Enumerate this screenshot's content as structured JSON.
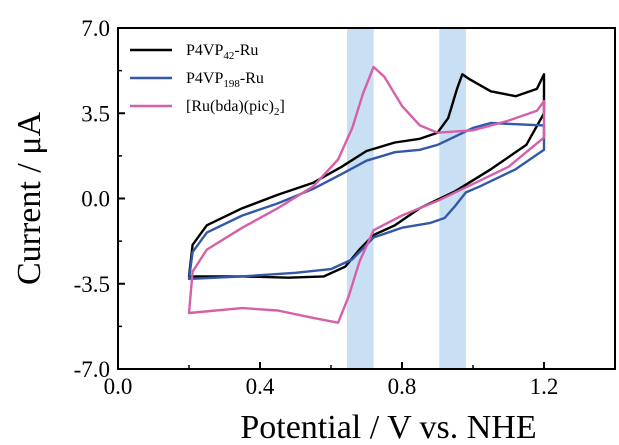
{
  "chart_data": {
    "type": "line",
    "title": "",
    "xlabel": "Potential / V vs. NHE",
    "ylabel": "Current / μA",
    "xlim": [
      0.0,
      1.4
    ],
    "ylim": [
      -7.0,
      7.0
    ],
    "xticks": [
      "0.0",
      "0.4",
      "0.8",
      "1.2"
    ],
    "xtick_values": [
      0.0,
      0.4,
      0.8,
      1.2
    ],
    "yticks": [
      "-7.0",
      "-3.5",
      "0.0",
      "3.5",
      "7.0"
    ],
    "ytick_values": [
      -7.0,
      -3.5,
      0.0,
      3.5,
      7.0
    ],
    "grid": false,
    "legend_position": "top-left",
    "highlight_bands": [
      {
        "x_start": 0.645,
        "x_end": 0.72,
        "color": "#c9dff3"
      },
      {
        "x_start": 0.905,
        "x_end": 0.98,
        "color": "#c9dff3"
      }
    ],
    "series": [
      {
        "name_main": "P4VP",
        "name_sub": "42",
        "name_tail": "-Ru",
        "color": "#000000",
        "points": [
          [
            0.2,
            -3.2
          ],
          [
            0.21,
            -1.9
          ],
          [
            0.25,
            -1.1
          ],
          [
            0.35,
            -0.4
          ],
          [
            0.45,
            0.15
          ],
          [
            0.55,
            0.65
          ],
          [
            0.63,
            1.3
          ],
          [
            0.7,
            1.95
          ],
          [
            0.78,
            2.3
          ],
          [
            0.85,
            2.45
          ],
          [
            0.9,
            2.7
          ],
          [
            0.93,
            3.3
          ],
          [
            0.955,
            4.5
          ],
          [
            0.97,
            5.1
          ],
          [
            0.99,
            4.9
          ],
          [
            1.05,
            4.4
          ],
          [
            1.12,
            4.2
          ],
          [
            1.18,
            4.5
          ],
          [
            1.2,
            5.1
          ],
          [
            1.2,
            3.5
          ],
          [
            1.15,
            2.2
          ],
          [
            1.05,
            1.2
          ],
          [
            0.95,
            0.3
          ],
          [
            0.9,
            -0.05
          ],
          [
            0.85,
            -0.4
          ],
          [
            0.78,
            -1.1
          ],
          [
            0.72,
            -1.5
          ],
          [
            0.68,
            -2.1
          ],
          [
            0.64,
            -2.8
          ],
          [
            0.58,
            -3.2
          ],
          [
            0.48,
            -3.25
          ],
          [
            0.35,
            -3.2
          ],
          [
            0.2,
            -3.2
          ]
        ]
      },
      {
        "name_main": "P4VP",
        "name_sub": "198",
        "name_tail": "-Ru",
        "color": "#3358a8",
        "points": [
          [
            0.2,
            -3.3
          ],
          [
            0.21,
            -2.2
          ],
          [
            0.25,
            -1.4
          ],
          [
            0.35,
            -0.7
          ],
          [
            0.45,
            -0.2
          ],
          [
            0.55,
            0.4
          ],
          [
            0.63,
            1.0
          ],
          [
            0.7,
            1.55
          ],
          [
            0.78,
            1.9
          ],
          [
            0.85,
            2.0
          ],
          [
            0.9,
            2.2
          ],
          [
            0.95,
            2.55
          ],
          [
            1.0,
            2.9
          ],
          [
            1.05,
            3.1
          ],
          [
            1.12,
            3.05
          ],
          [
            1.2,
            3.0
          ],
          [
            1.2,
            2.0
          ],
          [
            1.12,
            1.2
          ],
          [
            1.02,
            0.5
          ],
          [
            0.98,
            0.25
          ],
          [
            0.95,
            -0.3
          ],
          [
            0.92,
            -0.8
          ],
          [
            0.88,
            -1.0
          ],
          [
            0.8,
            -1.2
          ],
          [
            0.72,
            -1.6
          ],
          [
            0.66,
            -2.5
          ],
          [
            0.6,
            -2.9
          ],
          [
            0.5,
            -3.05
          ],
          [
            0.35,
            -3.2
          ],
          [
            0.2,
            -3.3
          ]
        ]
      },
      {
        "name_main": "[Ru(bda)(pic)",
        "name_sub": "2",
        "name_tail": "]",
        "color": "#d560a8",
        "points": [
          [
            0.2,
            -4.7
          ],
          [
            0.21,
            -3.0
          ],
          [
            0.25,
            -2.1
          ],
          [
            0.35,
            -1.2
          ],
          [
            0.45,
            -0.4
          ],
          [
            0.55,
            0.5
          ],
          [
            0.62,
            1.6
          ],
          [
            0.66,
            2.9
          ],
          [
            0.69,
            4.3
          ],
          [
            0.72,
            5.4
          ],
          [
            0.75,
            5.0
          ],
          [
            0.8,
            3.8
          ],
          [
            0.85,
            3.0
          ],
          [
            0.9,
            2.7
          ],
          [
            1.0,
            2.8
          ],
          [
            1.1,
            3.2
          ],
          [
            1.18,
            3.6
          ],
          [
            1.2,
            4.0
          ],
          [
            1.2,
            2.5
          ],
          [
            1.1,
            1.3
          ],
          [
            1.0,
            0.6
          ],
          [
            0.9,
            -0.1
          ],
          [
            0.8,
            -0.7
          ],
          [
            0.72,
            -1.3
          ],
          [
            0.68,
            -2.6
          ],
          [
            0.65,
            -4.0
          ],
          [
            0.62,
            -5.1
          ],
          [
            0.55,
            -4.9
          ],
          [
            0.45,
            -4.6
          ],
          [
            0.35,
            -4.5
          ],
          [
            0.2,
            -4.7
          ]
        ]
      }
    ]
  }
}
